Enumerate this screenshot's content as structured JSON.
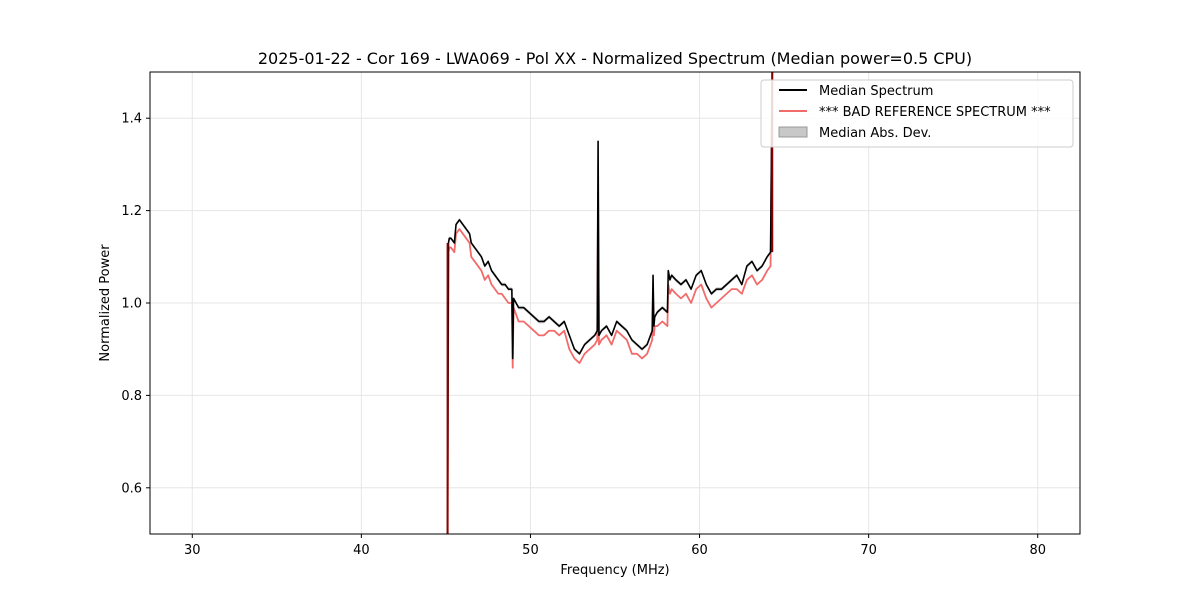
{
  "chart_data": {
    "type": "line",
    "title": "2025-01-22 - Cor 169 - LWA069 - Pol XX - Normalized Spectrum (Median power=0.5 CPU)",
    "xlabel": "Frequency (MHz)",
    "ylabel": "Normalized Power",
    "xlim": [
      27.5,
      82.5
    ],
    "ylim": [
      0.5,
      1.5
    ],
    "xticks": [
      30,
      40,
      50,
      60,
      70,
      80
    ],
    "yticks": [
      0.6,
      0.8,
      1.0,
      1.2,
      1.4
    ],
    "grid": true,
    "legend_position": "top-right",
    "colors": {
      "median": "#000000",
      "reference": "#f26b6b",
      "mad": "#c8c8c8",
      "overlap": "#8b0000"
    },
    "series": [
      {
        "name": "Median Spectrum",
        "role": "median",
        "x": [
          45.1,
          45.15,
          45.2,
          45.3,
          45.5,
          45.6,
          45.8,
          46.0,
          46.2,
          46.4,
          46.5,
          46.7,
          46.9,
          47.1,
          47.3,
          47.5,
          47.7,
          47.9,
          48.1,
          48.3,
          48.5,
          48.7,
          48.9,
          48.95,
          49.0,
          49.3,
          49.6,
          49.9,
          50.2,
          50.5,
          50.8,
          51.1,
          51.4,
          51.7,
          52.0,
          52.3,
          52.6,
          52.9,
          53.2,
          53.5,
          53.8,
          53.95,
          54.0,
          54.05,
          54.2,
          54.5,
          54.8,
          55.1,
          55.4,
          55.7,
          56.0,
          56.3,
          56.6,
          56.9,
          57.2,
          57.25,
          57.3,
          57.35,
          57.5,
          57.8,
          58.1,
          58.15,
          58.25,
          58.35,
          58.6,
          58.9,
          59.2,
          59.5,
          59.8,
          60.1,
          60.4,
          60.7,
          61.0,
          61.3,
          61.6,
          61.9,
          62.2,
          62.5,
          62.8,
          63.1,
          63.4,
          63.7,
          64.0,
          64.2,
          64.3
        ],
        "y": [
          0.5,
          1.13,
          1.14,
          1.14,
          1.13,
          1.17,
          1.18,
          1.17,
          1.16,
          1.15,
          1.13,
          1.12,
          1.11,
          1.1,
          1.08,
          1.09,
          1.07,
          1.06,
          1.05,
          1.04,
          1.04,
          1.03,
          1.03,
          0.88,
          1.01,
          0.99,
          0.99,
          0.98,
          0.97,
          0.96,
          0.96,
          0.97,
          0.96,
          0.95,
          0.96,
          0.93,
          0.9,
          0.89,
          0.91,
          0.92,
          0.93,
          0.94,
          1.35,
          0.93,
          0.94,
          0.95,
          0.93,
          0.96,
          0.95,
          0.94,
          0.92,
          0.91,
          0.9,
          0.91,
          0.94,
          1.06,
          0.95,
          0.97,
          0.98,
          0.99,
          0.98,
          1.07,
          1.05,
          1.06,
          1.05,
          1.04,
          1.05,
          1.03,
          1.06,
          1.07,
          1.04,
          1.02,
          1.03,
          1.03,
          1.04,
          1.05,
          1.06,
          1.04,
          1.08,
          1.09,
          1.07,
          1.08,
          1.1,
          1.11,
          1.5
        ]
      },
      {
        "name": "*** BAD REFERENCE SPECTRUM ***",
        "role": "reference",
        "x": [
          45.1,
          45.15,
          45.2,
          45.3,
          45.5,
          45.6,
          45.8,
          46.0,
          46.2,
          46.4,
          46.5,
          46.7,
          46.9,
          47.1,
          47.3,
          47.5,
          47.7,
          47.9,
          48.1,
          48.3,
          48.5,
          48.7,
          48.9,
          48.95,
          49.0,
          49.3,
          49.6,
          49.9,
          50.2,
          50.5,
          50.8,
          51.1,
          51.4,
          51.7,
          52.0,
          52.3,
          52.6,
          52.9,
          53.2,
          53.5,
          53.8,
          53.95,
          54.0,
          54.05,
          54.2,
          54.5,
          54.8,
          55.1,
          55.4,
          55.7,
          56.0,
          56.3,
          56.6,
          56.9,
          57.2,
          57.25,
          57.3,
          57.35,
          57.5,
          57.8,
          58.1,
          58.15,
          58.25,
          58.35,
          58.6,
          58.9,
          59.2,
          59.5,
          59.8,
          60.1,
          60.4,
          60.7,
          61.0,
          61.3,
          61.6,
          61.9,
          62.2,
          62.5,
          62.8,
          63.1,
          63.4,
          63.7,
          64.0,
          64.2,
          64.3
        ],
        "y": [
          0.5,
          1.11,
          1.12,
          1.12,
          1.11,
          1.15,
          1.16,
          1.15,
          1.14,
          1.13,
          1.1,
          1.09,
          1.08,
          1.07,
          1.05,
          1.06,
          1.04,
          1.03,
          1.02,
          1.02,
          1.01,
          1.0,
          1.0,
          0.86,
          0.99,
          0.96,
          0.96,
          0.95,
          0.94,
          0.93,
          0.93,
          0.94,
          0.94,
          0.93,
          0.94,
          0.9,
          0.88,
          0.87,
          0.89,
          0.9,
          0.91,
          0.92,
          1.24,
          0.91,
          0.92,
          0.93,
          0.91,
          0.94,
          0.93,
          0.92,
          0.89,
          0.89,
          0.88,
          0.89,
          0.92,
          1.02,
          0.93,
          0.95,
          0.95,
          0.96,
          0.95,
          1.04,
          1.02,
          1.03,
          1.02,
          1.01,
          1.02,
          1.0,
          1.03,
          1.04,
          1.01,
          0.99,
          1.0,
          1.01,
          1.02,
          1.03,
          1.03,
          1.02,
          1.05,
          1.06,
          1.04,
          1.05,
          1.07,
          1.08,
          1.5
        ]
      },
      {
        "name": "Median Abs. Dev.",
        "role": "mad",
        "type": "band",
        "halfwidth": 0.004
      }
    ]
  }
}
